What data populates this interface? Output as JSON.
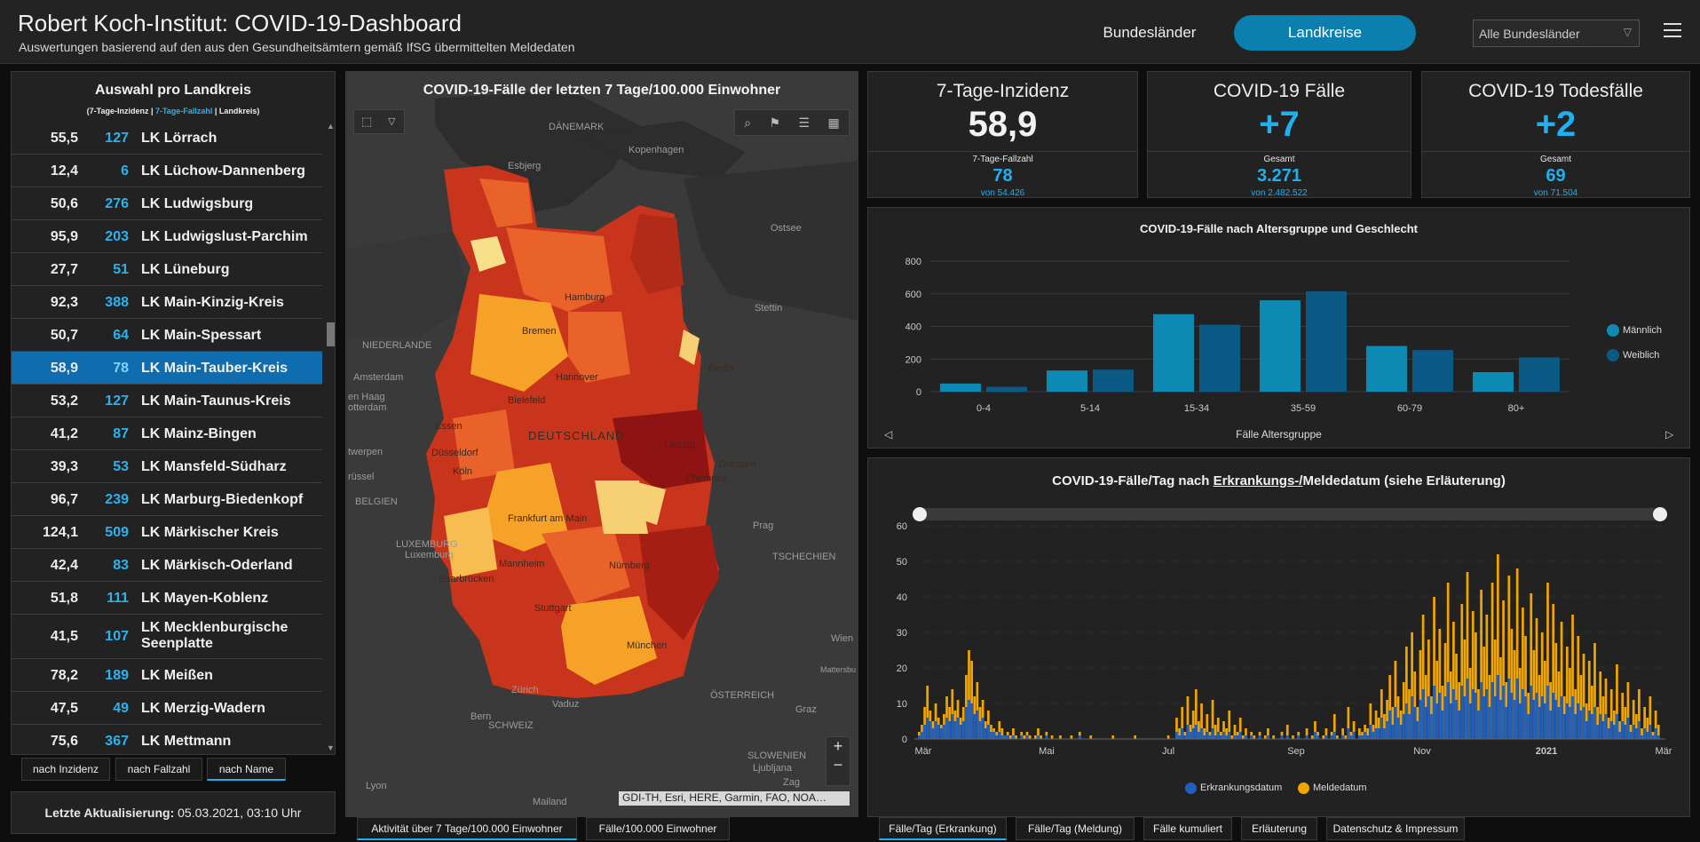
{
  "header": {
    "title": "Robert Koch-Institut: COVID-19-Dashboard",
    "subtitle": "Auswertungen basierend auf den aus den Gesundheitsämtern gemäß IfSG übermittelten Meldedaten",
    "btn_bundeslaender": "Bundesländer",
    "btn_landkreise": "Landkreise",
    "select_value": "Alle Bundesländer",
    "accent": "#0b7fae"
  },
  "list": {
    "title": "Auswahl pro Landkreis",
    "legend_a": "(7-Tage-Inzidenz | ",
    "legend_b": "7-Tage-Fallzahl",
    "legend_c": " | Landkreis)",
    "rows": [
      {
        "inc": "55,5",
        "fz": "127",
        "name": "LK Lörrach"
      },
      {
        "inc": "12,4",
        "fz": "6",
        "name": "LK Lüchow-Dannenberg"
      },
      {
        "inc": "50,6",
        "fz": "276",
        "name": "LK Ludwigsburg"
      },
      {
        "inc": "95,9",
        "fz": "203",
        "name": "LK Ludwigslust-Parchim"
      },
      {
        "inc": "27,7",
        "fz": "51",
        "name": "LK Lüneburg"
      },
      {
        "inc": "92,3",
        "fz": "388",
        "name": "LK Main-Kinzig-Kreis"
      },
      {
        "inc": "50,7",
        "fz": "64",
        "name": "LK Main-Spessart"
      },
      {
        "inc": "58,9",
        "fz": "78",
        "name": "LK Main-Tauber-Kreis",
        "selected": true
      },
      {
        "inc": "53,2",
        "fz": "127",
        "name": "LK Main-Taunus-Kreis"
      },
      {
        "inc": "41,2",
        "fz": "87",
        "name": "LK Mainz-Bingen"
      },
      {
        "inc": "39,3",
        "fz": "53",
        "name": "LK Mansfeld-Südharz"
      },
      {
        "inc": "96,7",
        "fz": "239",
        "name": "LK Marburg-Biedenkopf"
      },
      {
        "inc": "124,1",
        "fz": "509",
        "name": "LK Märkischer Kreis"
      },
      {
        "inc": "42,4",
        "fz": "83",
        "name": "LK Märkisch-Oderland"
      },
      {
        "inc": "51,8",
        "fz": "111",
        "name": "LK Mayen-Koblenz"
      },
      {
        "inc": "41,5",
        "fz": "107",
        "name": "LK Mecklenburgische Seenplatte",
        "tall": true
      },
      {
        "inc": "78,2",
        "fz": "189",
        "name": "LK Meißen"
      },
      {
        "inc": "47,5",
        "fz": "49",
        "name": "LK Merzig-Wadern"
      },
      {
        "inc": "75,6",
        "fz": "367",
        "name": "LK Mettmann"
      }
    ],
    "sort_inzidenz": "nach Inzidenz",
    "sort_fallzahl": "nach Fallzahl",
    "sort_name": "nach Name",
    "update_label": "Letzte Aktualisierung:",
    "update_value": "05.03.2021, 03:10 Uhr"
  },
  "map": {
    "title": "COVID-19-Fälle der letzten 7 Tage/100.000 Einwohner",
    "attribution": "GDI-TH, Esri, HERE, Garmin, FAO, NOA…",
    "tab_active": "Aktivität über 7 Tage/100.000 Einwohner",
    "tab_2": "Fälle/100.000 Einwohner",
    "labels": {
      "daenemark": "DÄNEMARK",
      "esbjerg": "Esbjerg",
      "kopenhagen": "Kopenhagen",
      "ostsee": "Ostsee",
      "niederlande": "NIEDERLANDE",
      "amsterdam": "Amsterdam",
      "denhaag": "en Haag",
      "rotterdam": "otterdam",
      "essen": "Essen",
      "duesseldorf": "Düsseldorf",
      "koeln": "Köln",
      "antwerpen": "twerpen",
      "bruessel": "rüssel",
      "belgien": "BELGIEN",
      "luxemburg_c": "LUXEMBURG",
      "luxemburg": "Luxemburg",
      "saarbruecken": "Saarbrücken",
      "hamburg": "Hamburg",
      "bremen": "Bremen",
      "hannover": "Hannover",
      "bielefeld": "Bielefeld",
      "stettin": "Stettin",
      "berlin": "Berlin",
      "deutschland": "DEUTSCHLAND",
      "leipzig": "Leipzig",
      "dresden": "Dresden",
      "chemnitz": "Chemnitz",
      "frankfurt": "Frankfurt am Main",
      "mannheim": "Mannheim",
      "nuernberg": "Nürnberg",
      "stuttgart": "Stuttgart",
      "muenchen": "München",
      "prag": "Prag",
      "tschechien": "TSCHECHIEN",
      "wien": "Wien",
      "mattersburg": "Mattersbu",
      "oesterreich": "ÖSTERREICH",
      "graz": "Graz",
      "zuerich": "Zürich",
      "vaduz": "Vaduz",
      "bern": "Bern",
      "schweiz": "SCHWEIZ",
      "slowenien": "SLOWENIEN",
      "ljubljana": "Ljubljana",
      "zag": "Zag",
      "lyon": "Lyon",
      "mailand": "Mailand"
    }
  },
  "kpis": [
    {
      "title": "7-Tage-Inzidenz",
      "value": "58,9",
      "sub": "7-Tage-Fallzahl",
      "num": "78",
      "of": "von 54.426"
    },
    {
      "title": "COVID-19 Fälle",
      "value": "+7",
      "sub": "Gesamt",
      "num": "3.271",
      "of": "von 2.482.522"
    },
    {
      "title": "COVID-19 Todesfälle",
      "value": "+2",
      "sub": "Gesamt",
      "num": "69",
      "of": "von 71.504"
    }
  ],
  "age_chart": {
    "title": "COVID-19-Fälle nach Altersgruppe und Geschlecht",
    "xlabel": "Fälle Altersgruppe",
    "legend_m": "Männlich",
    "legend_w": "Weiblich",
    "color_m": "#0d8ab3",
    "color_w": "#0b5a86"
  },
  "day_chart": {
    "title_a": "COVID-19-Fälle/Tag nach ",
    "title_b": "Erkrankungs-/",
    "title_c": "Meldedatum (siehe Erläuterung)",
    "legend_e": "Erkrankungsdatum",
    "legend_m": "Meldedatum",
    "color_e": "#1f5fbf",
    "color_m": "#f0a500",
    "tabs": [
      "Fälle/Tag (Erkrankung)",
      "Fälle/Tag (Meldung)",
      "Fälle kumuliert",
      "Erläuterung",
      "Datenschutz & Impressum"
    ]
  },
  "chart_data": [
    {
      "type": "bar",
      "title": "COVID-19-Fälle nach Altersgruppe und Geschlecht",
      "xlabel": "Fälle Altersgruppe",
      "categories": [
        "0-4",
        "5-14",
        "15-34",
        "35-59",
        "60-79",
        "80+"
      ],
      "series": [
        {
          "name": "Männlich",
          "values": [
            50,
            130,
            475,
            560,
            280,
            120
          ]
        },
        {
          "name": "Weiblich",
          "values": [
            30,
            135,
            410,
            615,
            255,
            210
          ]
        }
      ],
      "ylim": [
        0,
        800
      ],
      "yticks": [
        0,
        200,
        400,
        600,
        800
      ],
      "legend": "right"
    },
    {
      "type": "bar",
      "title": "COVID-19-Fälle/Tag nach Erkrankungs-/Meldedatum (siehe Erläuterung)",
      "x_tick_labels": [
        "Mär",
        "Mai",
        "Jul",
        "Sep",
        "Nov",
        "2021",
        "Mär"
      ],
      "ylim": [
        0,
        60
      ],
      "yticks": [
        0,
        10,
        20,
        30,
        40,
        50,
        60
      ],
      "series": [
        {
          "name": "Meldedatum",
          "values": [
            2,
            4,
            9,
            15,
            8,
            5,
            10,
            6,
            4,
            7,
            12,
            9,
            14,
            8,
            11,
            6,
            9,
            18,
            25,
            22,
            12,
            16,
            9,
            11,
            5,
            8,
            4,
            3,
            2,
            5,
            3,
            1,
            2,
            1,
            3,
            1,
            0,
            2,
            1,
            2,
            1,
            0,
            1,
            3,
            1,
            0,
            2,
            0,
            1,
            0,
            0,
            1,
            0,
            0,
            0,
            1,
            0,
            0,
            2,
            0,
            0,
            0,
            1,
            0,
            0,
            0,
            0,
            0,
            0,
            0,
            1,
            0,
            0,
            0,
            0,
            0,
            0,
            0,
            1,
            0,
            0,
            0,
            0,
            0,
            0,
            0,
            0,
            0,
            0,
            0,
            1,
            0,
            0,
            6,
            3,
            9,
            2,
            12,
            4,
            8,
            14,
            5,
            10,
            3,
            7,
            2,
            11,
            4,
            6,
            2,
            5,
            3,
            8,
            1,
            4,
            2,
            6,
            1,
            3,
            0,
            2,
            1,
            0,
            2,
            0,
            1,
            3,
            0,
            1,
            0,
            0,
            2,
            0,
            4,
            0,
            1,
            0,
            2,
            0,
            0,
            3,
            0,
            1,
            5,
            2,
            0,
            1,
            3,
            0,
            2,
            7,
            1,
            0,
            3,
            1,
            9,
            2,
            5,
            0,
            3,
            2,
            4,
            3,
            10,
            4,
            8,
            6,
            14,
            7,
            11,
            18,
            9,
            22,
            12,
            8,
            16,
            26,
            14,
            30,
            19,
            9,
            25,
            35,
            18,
            28,
            12,
            40,
            22,
            31,
            15,
            27,
            44,
            19,
            33,
            24,
            16,
            38,
            28,
            47,
            20,
            36,
            30,
            14,
            42,
            26,
            35,
            18,
            44,
            28,
            52,
            23,
            39,
            16,
            46,
            31,
            25,
            48,
            20,
            37,
            29,
            13,
            41,
            25,
            34,
            18,
            30,
            22,
            44,
            16,
            38,
            27,
            19,
            33,
            12,
            26,
            20,
            35,
            14,
            29,
            18,
            24,
            10,
            22,
            15,
            27,
            9,
            19,
            12,
            17,
            6,
            14,
            8,
            21,
            5,
            13,
            9,
            16,
            4,
            11,
            7,
            14,
            3,
            9,
            6,
            12,
            2,
            8,
            4
          ]
        },
        {
          "name": "Erkrankungsdatum",
          "values": [
            1,
            2,
            4,
            6,
            5,
            3,
            5,
            4,
            3,
            4,
            6,
            5,
            7,
            5,
            6,
            4,
            5,
            9,
            11,
            10,
            7,
            8,
            5,
            6,
            3,
            4,
            2,
            2,
            1,
            2,
            1,
            1,
            1,
            0,
            1,
            0,
            0,
            1,
            0,
            1,
            0,
            0,
            0,
            1,
            0,
            0,
            1,
            0,
            0,
            0,
            0,
            0,
            0,
            0,
            0,
            0,
            0,
            0,
            1,
            0,
            0,
            0,
            0,
            0,
            0,
            0,
            0,
            0,
            0,
            0,
            0,
            0,
            0,
            0,
            0,
            0,
            0,
            0,
            0,
            0,
            0,
            0,
            0,
            0,
            0,
            0,
            0,
            0,
            0,
            0,
            0,
            0,
            0,
            2,
            1,
            3,
            1,
            4,
            2,
            3,
            4,
            2,
            3,
            1,
            2,
            1,
            3,
            1,
            2,
            1,
            2,
            1,
            2,
            0,
            1,
            1,
            2,
            0,
            1,
            0,
            1,
            0,
            0,
            1,
            0,
            0,
            1,
            0,
            0,
            0,
            0,
            1,
            0,
            1,
            0,
            0,
            0,
            1,
            0,
            0,
            1,
            0,
            0,
            2,
            1,
            0,
            0,
            1,
            0,
            1,
            2,
            0,
            0,
            1,
            0,
            3,
            1,
            2,
            0,
            1,
            1,
            2,
            1,
            4,
            2,
            3,
            3,
            6,
            3,
            5,
            8,
            4,
            9,
            6,
            4,
            7,
            10,
            7,
            12,
            9,
            5,
            11,
            14,
            9,
            12,
            7,
            15,
            10,
            13,
            8,
            12,
            16,
            10,
            14,
            11,
            8,
            15,
            12,
            17,
            10,
            14,
            13,
            8,
            16,
            12,
            14,
            9,
            16,
            12,
            18,
            11,
            15,
            9,
            17,
            13,
            11,
            17,
            10,
            14,
            12,
            7,
            15,
            11,
            13,
            9,
            12,
            10,
            15,
            8,
            13,
            11,
            9,
            12,
            7,
            10,
            9,
            12,
            7,
            10,
            8,
            9,
            5,
            8,
            7,
            9,
            4,
            7,
            5,
            7,
            3,
            5,
            4,
            7,
            2,
            5,
            4,
            6,
            2,
            4,
            3,
            5,
            1,
            3,
            2,
            4,
            1,
            3,
            1
          ]
        }
      ]
    }
  ]
}
